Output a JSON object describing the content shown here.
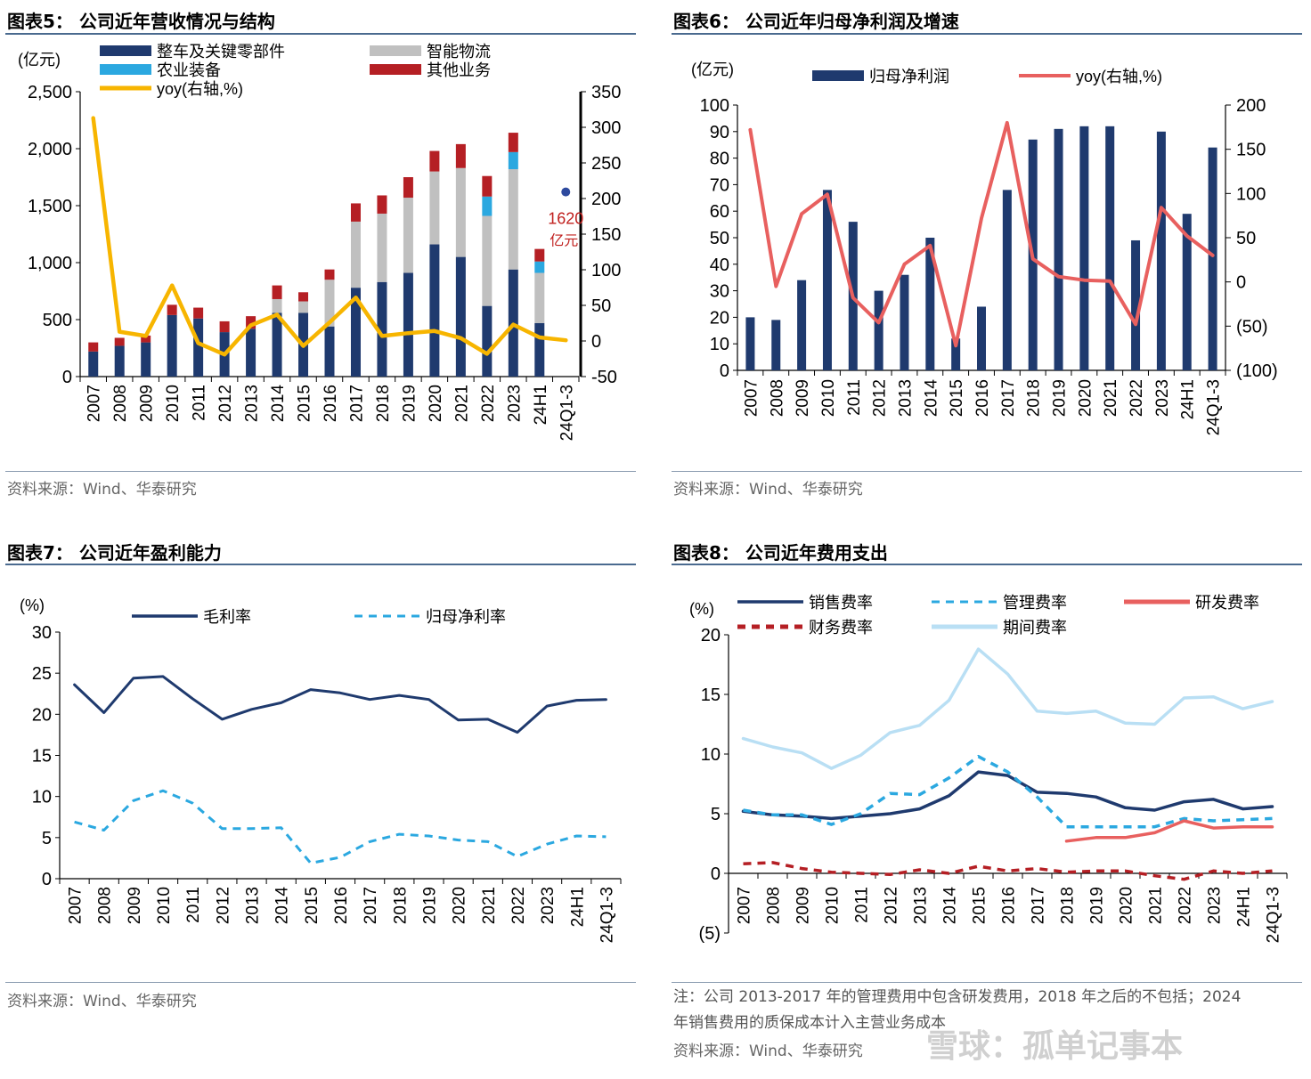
{
  "source_text": "资料来源：Wind、华泰研究",
  "watermark": "雪球：孤单记事本",
  "chart_data": [
    {
      "id": "fig5",
      "type": "bar",
      "stacked": true,
      "title": "图表5：  公司近年营收情况与结构",
      "ylabel_left": "(亿元)",
      "categories": [
        "2007",
        "2008",
        "2009",
        "2010",
        "2011",
        "2012",
        "2013",
        "2014",
        "2015",
        "2016",
        "2017",
        "2018",
        "2019",
        "2020",
        "2021",
        "2022",
        "2023",
        "24H1",
        "24Q1-3"
      ],
      "left_ticks": [
        "0",
        "500",
        "1,000",
        "1,500",
        "2,000",
        "2,500"
      ],
      "left_ylim": [
        0,
        2500
      ],
      "right_ticks": [
        "-50",
        "0",
        "50",
        "100",
        "150",
        "200",
        "250",
        "300",
        "350"
      ],
      "right_ylim": [
        -50,
        350
      ],
      "series": [
        {
          "name": "整车及关键零部件",
          "color": "#1f3a6e",
          "values": [
            220,
            270,
            300,
            540,
            510,
            390,
            420,
            560,
            560,
            440,
            780,
            830,
            910,
            1160,
            1050,
            620,
            940,
            470,
            0
          ]
        },
        {
          "name": "智能物流",
          "color": "#c0c0c0",
          "values": [
            0,
            0,
            0,
            0,
            0,
            0,
            0,
            120,
            100,
            410,
            580,
            600,
            660,
            640,
            780,
            790,
            880,
            440,
            0
          ]
        },
        {
          "name": "农业装备",
          "color": "#2ba8e0",
          "values": [
            0,
            0,
            0,
            0,
            0,
            0,
            0,
            0,
            0,
            0,
            0,
            0,
            0,
            0,
            0,
            170,
            150,
            100,
            0
          ]
        },
        {
          "name": "其他业务",
          "color": "#b51f24",
          "values": [
            80,
            70,
            60,
            90,
            95,
            95,
            110,
            120,
            80,
            90,
            160,
            160,
            180,
            180,
            210,
            180,
            170,
            110,
            0
          ]
        }
      ],
      "line": {
        "name": "yoy(右轴,%)",
        "color": "#f7b500",
        "values": [
          313,
          13,
          7,
          78,
          -3,
          -19,
          22,
          37,
          -7,
          26,
          61,
          7,
          11,
          14,
          4,
          -18,
          23,
          5,
          1
        ]
      },
      "point": {
        "label_line1": "1620",
        "label_line2": "亿元",
        "value": 1620,
        "category": "24Q1-3",
        "color": "#2e4a9e",
        "label_color": "#c0201e"
      }
    },
    {
      "id": "fig6",
      "type": "bar",
      "title": "图表6：  公司近年归母净利润及增速",
      "ylabel_left": "(亿元)",
      "categories": [
        "2007",
        "2008",
        "2009",
        "2010",
        "2011",
        "2012",
        "2013",
        "2014",
        "2015",
        "2016",
        "2017",
        "2018",
        "2019",
        "2020",
        "2021",
        "2022",
        "2023",
        "24H1",
        "24Q1-3"
      ],
      "left_ticks": [
        "0",
        "10",
        "20",
        "30",
        "40",
        "50",
        "60",
        "70",
        "80",
        "90",
        "100"
      ],
      "left_ylim": [
        0,
        100
      ],
      "right_ticks": [
        "(100)",
        "(50)",
        "0",
        "50",
        "100",
        "150",
        "200"
      ],
      "right_ylim": [
        -100,
        200
      ],
      "series": [
        {
          "name": "归母净利润",
          "color": "#1f3a6e",
          "values": [
            20,
            19,
            34,
            68,
            56,
            30,
            36,
            50,
            12,
            24,
            68,
            87,
            91,
            92,
            92,
            49,
            90,
            59,
            84
          ]
        }
      ],
      "line": {
        "name": "yoy(右轴,%)",
        "color": "#e8605f",
        "values": [
          172,
          -5,
          77,
          99,
          -18,
          -46,
          20,
          41,
          -72,
          72,
          180,
          26,
          6,
          2,
          1,
          -48,
          84,
          52,
          30
        ]
      }
    },
    {
      "id": "fig7",
      "type": "line",
      "title": "图表7：  公司近年盈利能力",
      "ylabel": "(%)",
      "categories": [
        "2007",
        "2008",
        "2009",
        "2010",
        "2011",
        "2012",
        "2013",
        "2014",
        "2015",
        "2016",
        "2017",
        "2018",
        "2019",
        "2020",
        "2021",
        "2022",
        "2023",
        "24H1",
        "24Q1-3"
      ],
      "ticks": [
        "0",
        "5",
        "10",
        "15",
        "20",
        "25",
        "30"
      ],
      "ylim": [
        0,
        30
      ],
      "series": [
        {
          "name": "毛利率",
          "color": "#1f3a6e",
          "dash": false,
          "values": [
            23.6,
            20.2,
            24.4,
            24.6,
            21.9,
            19.4,
            20.6,
            21.4,
            23.0,
            22.6,
            21.8,
            22.3,
            21.8,
            19.3,
            19.4,
            17.8,
            21.0,
            21.7,
            21.8
          ]
        },
        {
          "name": "归母净利率",
          "color": "#2ba8e0",
          "dash": true,
          "values": [
            6.9,
            5.9,
            9.5,
            10.7,
            9.2,
            6.1,
            6.1,
            6.2,
            1.9,
            2.6,
            4.5,
            5.4,
            5.2,
            4.7,
            4.5,
            2.7,
            4.2,
            5.2,
            5.1
          ]
        }
      ]
    },
    {
      "id": "fig8",
      "type": "line",
      "title": "图表8：  公司近年费用支出",
      "ylabel": "(%)",
      "categories": [
        "2007",
        "2008",
        "2009",
        "2010",
        "2011",
        "2012",
        "2013",
        "2014",
        "2015",
        "2016",
        "2017",
        "2018",
        "2019",
        "2020",
        "2021",
        "2022",
        "2023",
        "24H1",
        "24Q1-3"
      ],
      "ticks": [
        "(5)",
        "0",
        "5",
        "10",
        "15",
        "20"
      ],
      "ylim": [
        -5,
        20
      ],
      "series": [
        {
          "name": "销售费率",
          "color": "#1f3a6e",
          "dash": false,
          "values": [
            5.2,
            4.9,
            4.8,
            4.6,
            4.8,
            5.0,
            5.4,
            6.5,
            8.5,
            8.2,
            6.8,
            6.7,
            6.4,
            5.5,
            5.3,
            6.0,
            6.2,
            5.4,
            5.6
          ]
        },
        {
          "name": "管理费率",
          "color": "#2ba8e0",
          "dash": true,
          "values": [
            5.3,
            4.9,
            4.9,
            4.1,
            5.0,
            6.7,
            6.6,
            8.0,
            9.8,
            8.5,
            6.4,
            3.9,
            3.9,
            3.9,
            3.9,
            4.6,
            4.4,
            4.5,
            4.6
          ]
        },
        {
          "name": "研发费率",
          "color": "#e8605f",
          "dash": false,
          "values": [
            null,
            null,
            null,
            null,
            null,
            null,
            null,
            null,
            null,
            null,
            null,
            2.7,
            3.0,
            3.0,
            3.4,
            4.4,
            3.8,
            3.9,
            3.9
          ]
        },
        {
          "name": "财务费率",
          "color": "#b51f24",
          "dash": true,
          "values": [
            0.8,
            0.9,
            0.4,
            0.1,
            0.0,
            -0.1,
            0.3,
            0.0,
            0.6,
            0.2,
            0.4,
            0.1,
            0.2,
            0.2,
            -0.2,
            -0.5,
            0.2,
            0.0,
            0.2
          ]
        },
        {
          "name": "期间费率",
          "color": "#b9dff4",
          "dash": false,
          "values": [
            11.3,
            10.6,
            10.1,
            8.8,
            9.9,
            11.8,
            12.4,
            14.5,
            18.8,
            16.7,
            13.6,
            13.4,
            13.6,
            12.6,
            12.5,
            14.7,
            14.8,
            13.8,
            14.4
          ]
        }
      ],
      "note_line1": "注：公司 2013-2017 年的管理费用中包含研发费用，2018 年之后的不包括；2024",
      "note_line2": "年销售费用的质保成本计入主营业务成本"
    }
  ]
}
